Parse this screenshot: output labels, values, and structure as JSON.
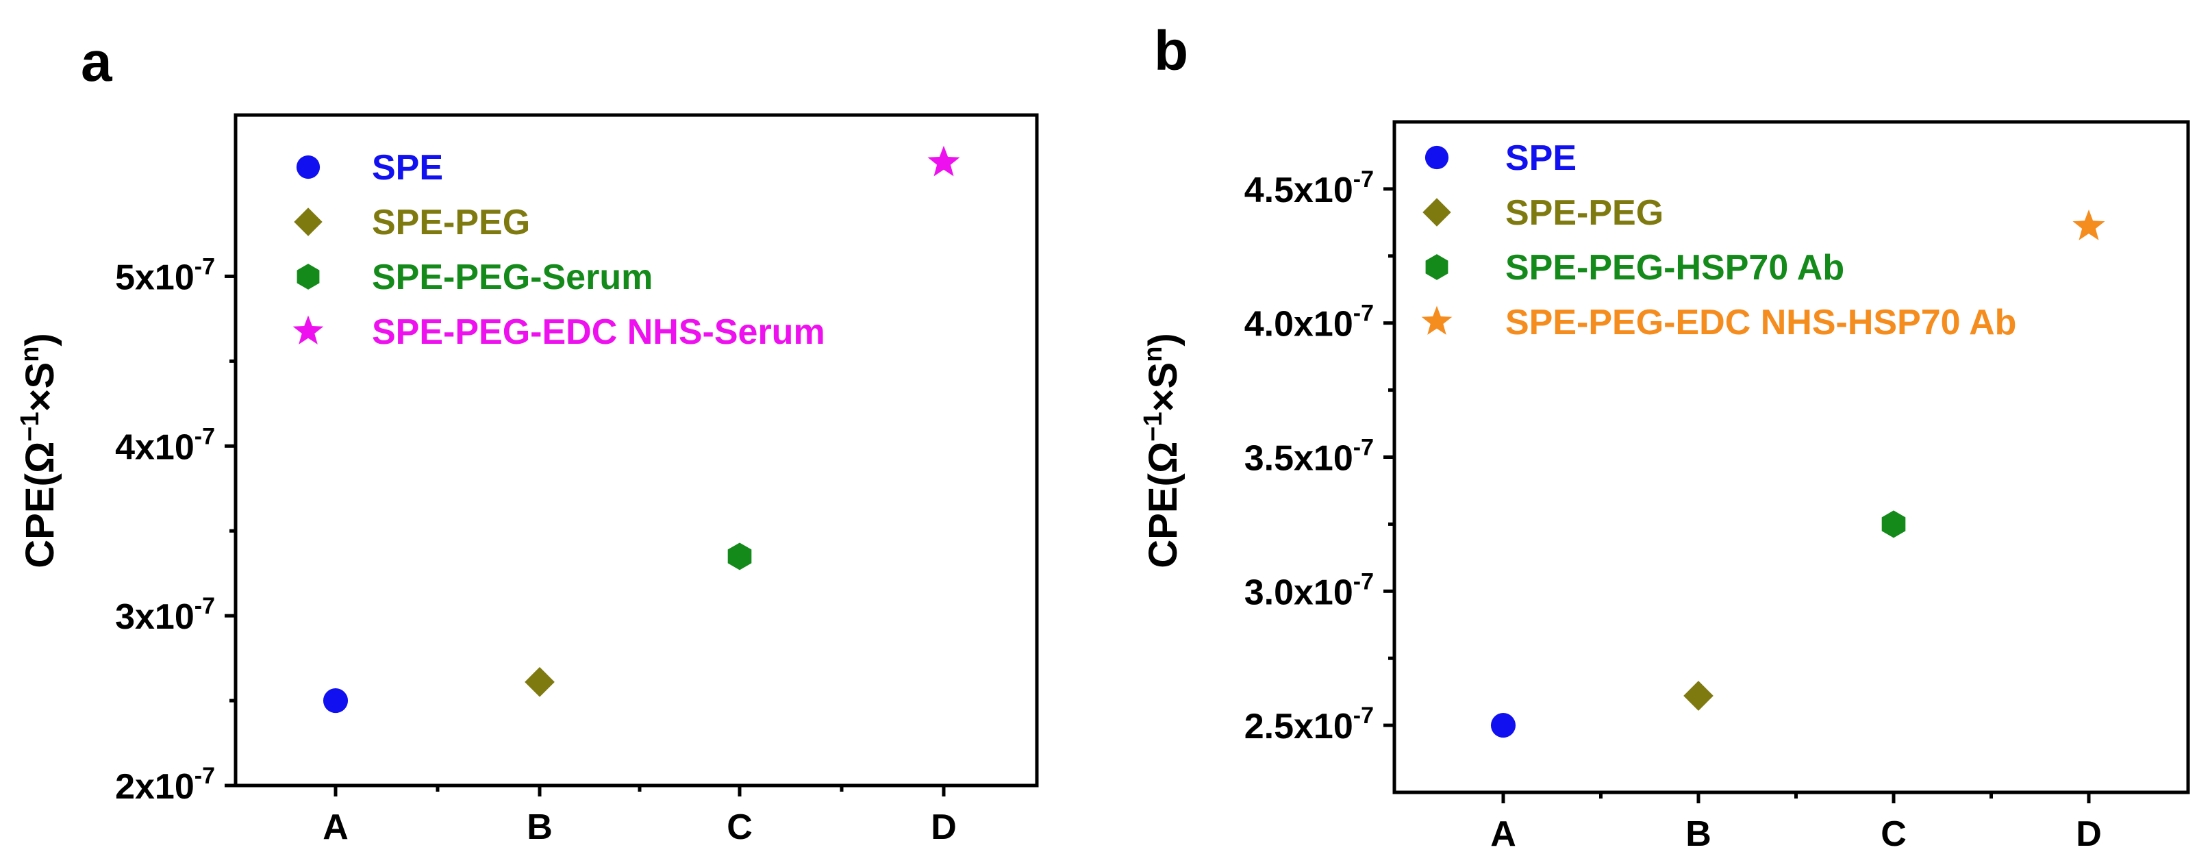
{
  "colors": {
    "spe": "#1010f0",
    "spe_peg": "#7f7a10",
    "spe_peg_third": "#138a1a",
    "spe_peg_edc_serum": "#ee10ee",
    "spe_peg_edc_ab": "#f58c1e",
    "axis": "#000000"
  },
  "chart_data": [
    {
      "type": "scatter",
      "panel": "a",
      "title": "",
      "xlabel": "",
      "ylabel": {
        "main": "CPE(Ω",
        "sup1": "−1",
        "mid": "×S",
        "sup2": "n",
        "close": ")"
      },
      "categories": [
        "A",
        "B",
        "C",
        "D"
      ],
      "ylim": [
        2e-07,
        5.95e-07
      ],
      "yticks": [
        {
          "value": 2e-07,
          "mant": "2x10",
          "exp": "-7"
        },
        {
          "value": 3e-07,
          "mant": "3x10",
          "exp": "-7"
        },
        {
          "value": 4e-07,
          "mant": "4x10",
          "exp": "-7"
        },
        {
          "value": 5e-07,
          "mant": "5x10",
          "exp": "-7"
        }
      ],
      "series": [
        {
          "name": "SPE",
          "category": "A",
          "value": 2.5e-07,
          "marker": "circle",
          "color": "#1010f0"
        },
        {
          "name": "SPE-PEG",
          "category": "B",
          "value": 2.61e-07,
          "marker": "diamond",
          "color": "#7f7a10"
        },
        {
          "name": "SPE-PEG-Serum",
          "category": "C",
          "value": 3.35e-07,
          "marker": "hexagon",
          "color": "#138a1a"
        },
        {
          "name": "SPE-PEG-EDC NHS-Serum",
          "category": "D",
          "value": 5.67e-07,
          "marker": "star",
          "color": "#ee10ee"
        }
      ],
      "legend_position": "top-left"
    },
    {
      "type": "scatter",
      "panel": "b",
      "title": "",
      "xlabel": "",
      "ylabel": {
        "main": "CPE(Ω",
        "sup1": "−1",
        "mid": "×S",
        "sup2": "n",
        "close": ")"
      },
      "categories": [
        "A",
        "B",
        "C",
        "D"
      ],
      "ylim": [
        2.25e-07,
        4.75e-07
      ],
      "yticks": [
        {
          "value": 2.5e-07,
          "mant": "2.5x10",
          "exp": "-7"
        },
        {
          "value": 3e-07,
          "mant": "3.0x10",
          "exp": "-7"
        },
        {
          "value": 3.5e-07,
          "mant": "3.5x10",
          "exp": "-7"
        },
        {
          "value": 4e-07,
          "mant": "4.0x10",
          "exp": "-7"
        },
        {
          "value": 4.5e-07,
          "mant": "4.5x10",
          "exp": "-7"
        }
      ],
      "series": [
        {
          "name": "SPE",
          "category": "A",
          "value": 2.5e-07,
          "marker": "circle",
          "color": "#1010f0"
        },
        {
          "name": "SPE-PEG",
          "category": "B",
          "value": 2.61e-07,
          "marker": "diamond",
          "color": "#7f7a10"
        },
        {
          "name": "SPE-PEG-HSP70 Ab",
          "category": "C",
          "value": 3.25e-07,
          "marker": "hexagon",
          "color": "#138a1a"
        },
        {
          "name": "SPE-PEG-EDC NHS-HSP70 Ab",
          "category": "D",
          "value": 4.36e-07,
          "marker": "star",
          "color": "#f58c1e"
        }
      ],
      "legend_position": "top-left"
    }
  ]
}
